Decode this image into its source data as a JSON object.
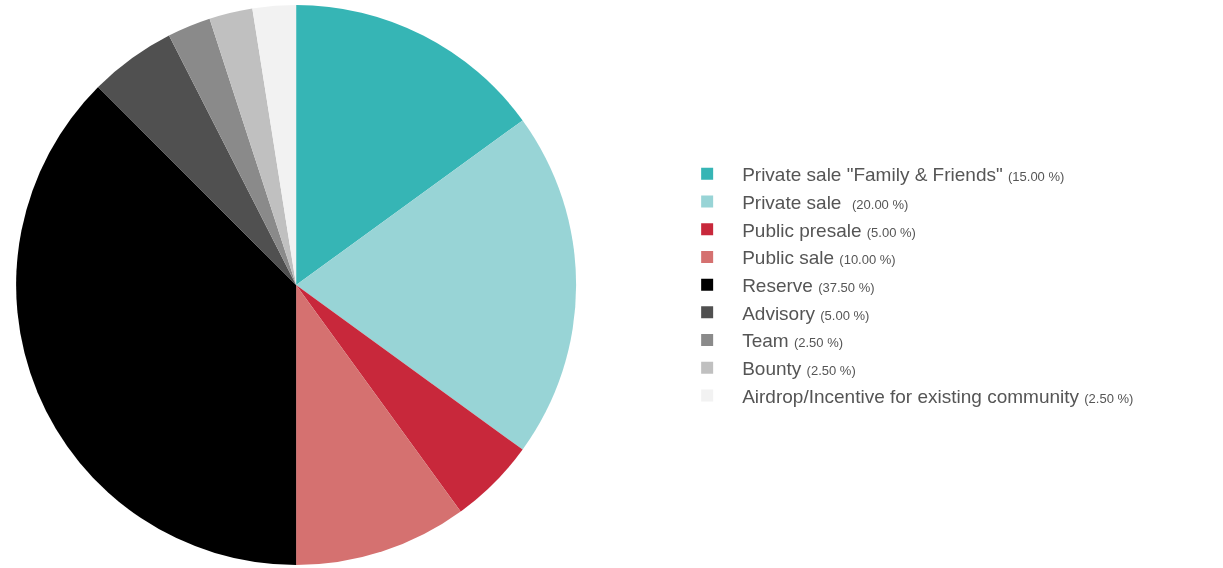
{
  "chart_data": {
    "type": "pie",
    "categories": [
      "Private sale \"Family & Friends\"",
      "Private sale ",
      "Public presale",
      "Public sale",
      "Reserve",
      "Advisory",
      "Team",
      "Bounty",
      "Airdrop/Incentive for existing community"
    ],
    "values": [
      15,
      20,
      5,
      10,
      37.5,
      5,
      2.5,
      2.5,
      2.5
    ],
    "value_labels": [
      "(15.00 %)",
      "(20.00 %)",
      "(5.00 %)",
      "(10.00 %)",
      "(37.50 %)",
      "(5.00 %)",
      "(2.50 %)",
      "(2.50 %)",
      "(2.50 %)"
    ],
    "colors": [
      "#36b5b5",
      "#98d4d6",
      "#c8283b",
      "#d57170",
      "#000000",
      "#505050",
      "#8a8a8a",
      "#c0c0c0",
      "#f2f2f2"
    ],
    "legend": "right"
  }
}
